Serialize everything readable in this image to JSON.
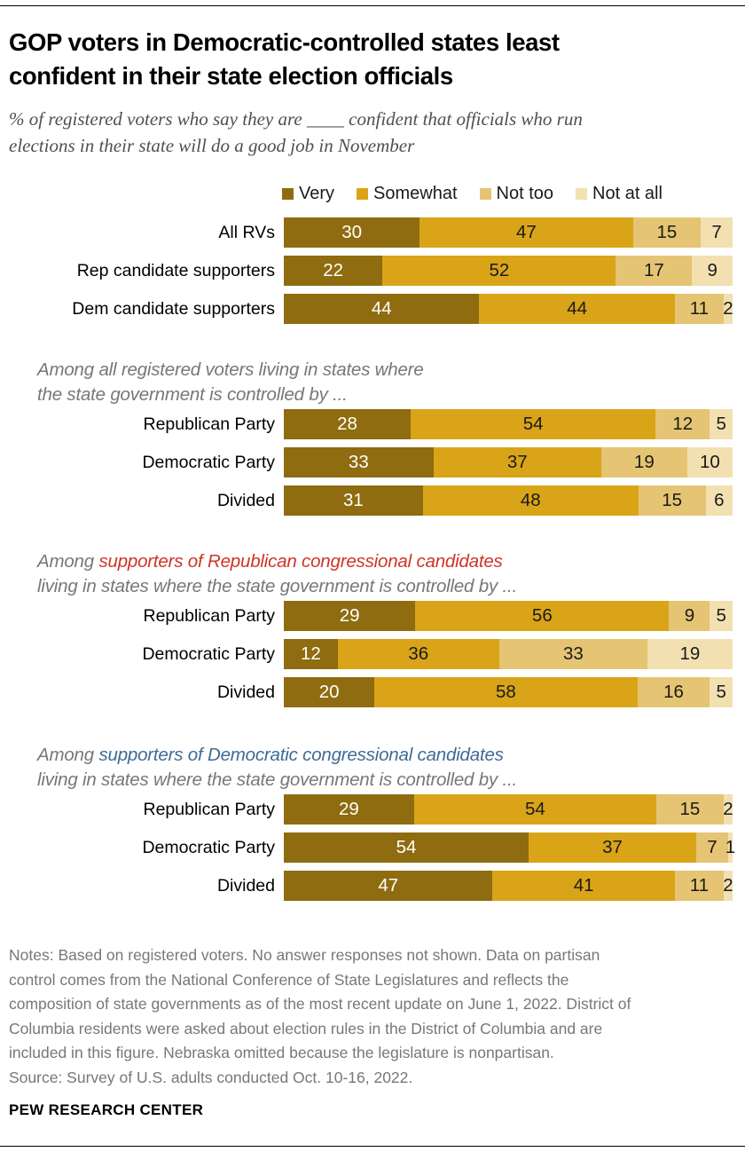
{
  "header": {
    "title": "GOP voters in Democratic-controlled states least\nconfident in their state election officials",
    "subtitle": "% of registered voters who say they are ____ confident that officials who run\nelections in their state will do a good job in November"
  },
  "colors": {
    "very": "#8E6C0F",
    "somewhat": "#D9A417",
    "not_too": "#E5C473",
    "not_at_all": "#F2E0B1",
    "red_highlight": "#CF3427",
    "blue_highlight": "#3E6B94",
    "header_gray": "#76777A"
  },
  "chart_data": {
    "type": "bar",
    "stacked": true,
    "orientation": "horizontal",
    "value_unit": "%",
    "xlim": [
      0,
      100
    ],
    "legend": [
      "Very",
      "Somewhat",
      "Not too",
      "Not at all"
    ],
    "legend_position": "top",
    "series_color_keys": [
      "very",
      "somewhat",
      "not_too",
      "not_at_all"
    ],
    "groups": [
      {
        "header_parts": [],
        "rows": [
          {
            "label": "All RVs",
            "values": [
              30,
              47,
              15,
              7
            ]
          },
          {
            "label": "Rep candidate supporters",
            "values": [
              22,
              52,
              17,
              9
            ]
          },
          {
            "label": "Dem candidate supporters",
            "values": [
              44,
              44,
              11,
              2
            ]
          }
        ]
      },
      {
        "header_parts": [
          {
            "text": "Among all registered voters living in states where\nthe state government is controlled by ...",
            "color": "gray"
          }
        ],
        "rows": [
          {
            "label": "Republican Party",
            "values": [
              28,
              54,
              12,
              5
            ]
          },
          {
            "label": "Democratic Party",
            "values": [
              33,
              37,
              19,
              10
            ]
          },
          {
            "label": "Divided",
            "values": [
              31,
              48,
              15,
              6
            ]
          }
        ]
      },
      {
        "header_parts": [
          {
            "text": "Among ",
            "color": "gray"
          },
          {
            "text": "supporters of Republican congressional candidates",
            "color": "red"
          },
          {
            "text": "\nliving in states where the state government is controlled by ...",
            "color": "gray"
          }
        ],
        "rows": [
          {
            "label": "Republican Party",
            "values": [
              29,
              56,
              9,
              5
            ]
          },
          {
            "label": "Democratic Party",
            "values": [
              12,
              36,
              33,
              19
            ]
          },
          {
            "label": "Divided",
            "values": [
              20,
              58,
              16,
              5
            ]
          }
        ]
      },
      {
        "header_parts": [
          {
            "text": "Among ",
            "color": "gray"
          },
          {
            "text": "supporters of Democratic congressional candidates",
            "color": "blue"
          },
          {
            "text": "\nliving in states where the state government is controlled by ...",
            "color": "gray"
          }
        ],
        "rows": [
          {
            "label": "Republican Party",
            "values": [
              29,
              54,
              15,
              2
            ]
          },
          {
            "label": "Democratic Party",
            "values": [
              54,
              37,
              7,
              1
            ]
          },
          {
            "label": "Divided",
            "values": [
              47,
              41,
              11,
              2
            ]
          }
        ]
      }
    ]
  },
  "footer": {
    "notes": "Notes: Based on registered voters. No answer responses not shown. Data on partisan\ncontrol comes from the National Conference of State Legislatures and reflects the\ncomposition of state governments as of the most recent update on June 1, 2022. District of\nColumbia residents were asked about election rules in the District of Columbia and are\nincluded in this figure. Nebraska omitted because the legislature is nonpartisan.",
    "source": "Source: Survey of U.S. adults conducted Oct. 10-16, 2022.",
    "brand": "PEW RESEARCH CENTER"
  }
}
